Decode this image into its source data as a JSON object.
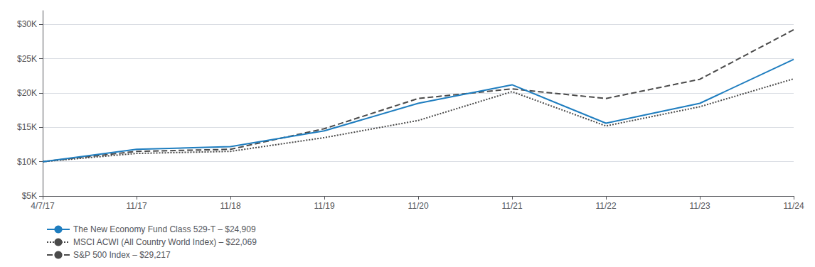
{
  "chart_data": {
    "type": "line",
    "categories": [
      "4/7/17",
      "11/17",
      "11/18",
      "11/19",
      "11/20",
      "11/21",
      "11/22",
      "11/23",
      "11/24"
    ],
    "series": [
      {
        "name": "The New Economy Fund Class 529-T – $24,909",
        "color": "#1e7dbf",
        "line_style": "solid",
        "values": [
          10000,
          11800,
          12200,
          14500,
          18500,
          21200,
          15600,
          18500,
          24909
        ]
      },
      {
        "name": "MSCI ACWI (All Country World Index) – $22,069",
        "color": "#4a4a4a",
        "line_style": "dotted",
        "values": [
          10000,
          11200,
          11500,
          13500,
          16000,
          20200,
          15200,
          18000,
          22069
        ]
      },
      {
        "name": "S&P 500 Index – $29,217",
        "color": "#4a4a4a",
        "line_style": "dashed",
        "values": [
          10000,
          11500,
          11800,
          14800,
          19200,
          20600,
          19200,
          22000,
          29217
        ]
      }
    ],
    "ylim": [
      5000,
      32000
    ],
    "yticks": [
      {
        "value": 5000,
        "label": "$5K"
      },
      {
        "value": 10000,
        "label": "$10K"
      },
      {
        "value": 15000,
        "label": "$15K"
      },
      {
        "value": 20000,
        "label": "$20K"
      },
      {
        "value": 25000,
        "label": "$25K"
      },
      {
        "value": 30000,
        "label": "$30K"
      }
    ],
    "grid": true,
    "legend": "lower left"
  }
}
